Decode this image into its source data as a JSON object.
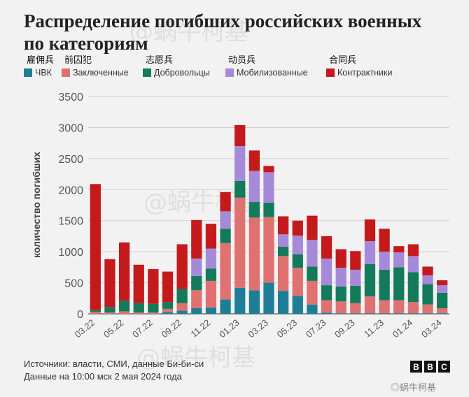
{
  "title": "Распределение погибших российских военных по категориям",
  "legend": [
    {
      "cn": "雇佣兵",
      "label": "ЧВК",
      "color": "#1f7e96"
    },
    {
      "cn": "前囚犯",
      "label": "Заключенные",
      "color": "#e07171"
    },
    {
      "cn": "志愿兵",
      "label": "Добровольцы",
      "color": "#137a5b"
    },
    {
      "cn": "动员兵",
      "label": "Мобилизованные",
      "color": "#a68ad9"
    },
    {
      "cn": "合同兵",
      "label": "Контрактники",
      "color": "#c41a1c"
    }
  ],
  "watermark": "@蜗牛柯基",
  "footer": {
    "sources": "Источники: власти, СМИ, данные Би-би-си",
    "date": "Данные на 10:00 мск 2 мая 2024 года"
  },
  "bbc": [
    "B",
    "B",
    "C"
  ],
  "weibo": "◎蜗牛柯基",
  "chart_data": {
    "type": "bar",
    "stacked": true,
    "ylabel": "количество погибших",
    "ylim": [
      0,
      3500
    ],
    "yticks": [
      0,
      500,
      1000,
      1500,
      2000,
      2500,
      3000,
      3500
    ],
    "grid": true,
    "categories": [
      "03.22",
      "04.22",
      "05.22",
      "06.22",
      "07.22",
      "08.22",
      "09.22",
      "10.22",
      "11.22",
      "12.22",
      "01.23",
      "02.23",
      "03.23",
      "04.23",
      "05.23",
      "06.23",
      "07.23",
      "08.23",
      "09.23",
      "10.23",
      "11.23",
      "12.23",
      "01.24",
      "02.24",
      "03.24"
    ],
    "xtick_labels": [
      "03.22",
      "05.22",
      "07.22",
      "09.22",
      "11.22",
      "01.23",
      "03.23",
      "05.23",
      "07.23",
      "09.23",
      "11.23",
      "01.24",
      "03.24"
    ],
    "series": [
      {
        "name": "ЧВК",
        "color": "#1f7e96",
        "values": [
          0,
          0,
          0,
          0,
          0,
          30,
          50,
          90,
          100,
          230,
          420,
          380,
          500,
          370,
          290,
          150,
          20,
          10,
          10,
          10,
          10,
          10,
          10,
          10,
          10
        ]
      },
      {
        "name": "Заключенные",
        "color": "#e07171",
        "values": [
          30,
          20,
          40,
          20,
          20,
          50,
          120,
          290,
          430,
          910,
          1450,
          1170,
          1060,
          560,
          450,
          380,
          200,
          190,
          160,
          270,
          210,
          210,
          180,
          140,
          80
        ]
      },
      {
        "name": "Добровольцы",
        "color": "#137a5b",
        "values": [
          30,
          90,
          170,
          150,
          140,
          110,
          230,
          230,
          200,
          230,
          270,
          250,
          230,
          150,
          220,
          230,
          240,
          240,
          280,
          520,
          490,
          530,
          480,
          330,
          250
        ]
      },
      {
        "name": "Мобилизованные",
        "color": "#a68ad9",
        "values": [
          0,
          0,
          0,
          0,
          0,
          0,
          0,
          280,
          320,
          280,
          560,
          500,
          490,
          200,
          300,
          430,
          430,
          300,
          260,
          370,
          290,
          240,
          260,
          140,
          120
        ]
      },
      {
        "name": "Контрактники",
        "color": "#c41a1c",
        "values": [
          2030,
          770,
          940,
          620,
          560,
          490,
          720,
          620,
          400,
          310,
          340,
          330,
          100,
          290,
          240,
          390,
          360,
          300,
          300,
          350,
          370,
          100,
          190,
          140,
          80
        ]
      }
    ]
  }
}
